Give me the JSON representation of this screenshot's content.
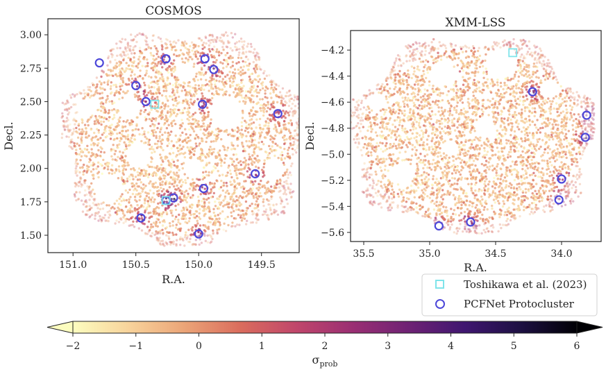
{
  "chart_data": [
    {
      "type": "scatter",
      "title": "COSMOS",
      "xlabel": "R.A.",
      "ylabel": "Decl.",
      "xlim": [
        151.2,
        149.2
      ],
      "ylim": [
        1.37,
        3.12
      ],
      "xticks": [
        {
          "v": 151.0,
          "label": "151.0"
        },
        {
          "v": 150.5,
          "label": "150.5"
        },
        {
          "v": 150.0,
          "label": "150.0"
        },
        {
          "v": 149.5,
          "label": "149.5"
        }
      ],
      "yticks": [
        {
          "v": 1.5,
          "label": "1.50"
        },
        {
          "v": 1.75,
          "label": "1.75"
        },
        {
          "v": 2.0,
          "label": "2.00"
        },
        {
          "v": 2.25,
          "label": "2.25"
        },
        {
          "v": 2.5,
          "label": "2.50"
        },
        {
          "v": 2.75,
          "label": "2.75"
        },
        {
          "v": 3.0,
          "label": "3.00"
        }
      ],
      "field": {
        "center": [
          150.12,
          2.22
        ],
        "radius": [
          0.97,
          0.8
        ],
        "holes": [
          [
            150.55,
            2.45,
            0.09
          ],
          [
            150.9,
            2.45,
            0.07
          ],
          [
            149.78,
            2.42,
            0.13
          ],
          [
            150.04,
            2.0,
            0.08
          ],
          [
            150.48,
            2.1,
            0.1
          ],
          [
            150.72,
            1.85,
            0.11
          ],
          [
            149.4,
            2.0,
            0.08
          ],
          [
            150.1,
            2.72,
            0.07
          ]
        ]
      },
      "series": [
        {
          "name": "PCFNet Protocluster",
          "marker": "circle",
          "points": [
            [
              150.79,
              2.79
            ],
            [
              150.5,
              2.62
            ],
            [
              150.42,
              2.5
            ],
            [
              150.26,
              2.82
            ],
            [
              149.95,
              2.82
            ],
            [
              149.88,
              2.74
            ],
            [
              149.97,
              2.48
            ],
            [
              149.37,
              2.41
            ],
            [
              149.55,
              1.96
            ],
            [
              150.26,
              1.76
            ],
            [
              150.2,
              1.78
            ],
            [
              149.96,
              1.85
            ],
            [
              150.46,
              1.63
            ],
            [
              150.0,
              1.51
            ]
          ]
        },
        {
          "name": "Toshikawa et al. (2023)",
          "marker": "square",
          "points": [
            [
              150.26,
              1.76
            ],
            [
              150.35,
              2.48
            ]
          ]
        }
      ]
    },
    {
      "type": "scatter",
      "title": "XMM-LSS",
      "xlabel": "R.A.",
      "ylabel": "Decl.",
      "xlim": [
        35.6,
        33.7
      ],
      "ylim": [
        -5.67,
        -4.05
      ],
      "xticks": [
        {
          "v": 35.5,
          "label": "35.5"
        },
        {
          "v": 35.0,
          "label": "35.0"
        },
        {
          "v": 34.5,
          "label": "34.5"
        },
        {
          "v": 34.0,
          "label": "34.0"
        }
      ],
      "yticks": [
        {
          "v": -5.6,
          "label": "−5.6"
        },
        {
          "v": -5.4,
          "label": "−5.4"
        },
        {
          "v": -5.2,
          "label": "−5.2"
        },
        {
          "v": -5.0,
          "label": "−5.0"
        },
        {
          "v": -4.8,
          "label": "−4.8"
        },
        {
          "v": -4.6,
          "label": "−4.6"
        },
        {
          "v": -4.4,
          "label": "−4.4"
        },
        {
          "v": -4.2,
          "label": "−4.2"
        }
      ],
      "field": {
        "center": [
          34.68,
          -4.86
        ],
        "radius": [
          0.93,
          0.75
        ],
        "holes": [
          [
            34.45,
            -4.3,
            0.12
          ],
          [
            34.9,
            -4.38,
            0.1
          ],
          [
            34.1,
            -4.5,
            0.07
          ],
          [
            34.58,
            -4.8,
            0.08
          ],
          [
            35.2,
            -5.15,
            0.09
          ],
          [
            34.85,
            -4.95,
            0.06
          ],
          [
            35.4,
            -4.6,
            0.07
          ]
        ]
      },
      "series": [
        {
          "name": "PCFNet Protocluster",
          "marker": "circle",
          "points": [
            [
              34.22,
              -4.52
            ],
            [
              33.81,
              -4.7
            ],
            [
              33.82,
              -4.87
            ],
            [
              34.0,
              -5.19
            ],
            [
              34.02,
              -5.35
            ],
            [
              34.93,
              -5.55
            ],
            [
              34.69,
              -5.52
            ]
          ]
        },
        {
          "name": "Toshikawa et al. (2023)",
          "marker": "square",
          "points": [
            [
              34.37,
              -4.22
            ]
          ]
        }
      ]
    },
    {
      "type": "heatmap",
      "colorbar_label": "σ",
      "colorbar_label_sub": "prob",
      "range": [
        -2,
        6
      ],
      "extend": "both",
      "colormap": "magma_r",
      "ticks": [
        {
          "v": -2,
          "label": "−2"
        },
        {
          "v": -1,
          "label": "−1"
        },
        {
          "v": 0,
          "label": "0"
        },
        {
          "v": 1,
          "label": "1"
        },
        {
          "v": 2,
          "label": "2"
        },
        {
          "v": 3,
          "label": "3"
        },
        {
          "v": 4,
          "label": "4"
        },
        {
          "v": 5,
          "label": "5"
        },
        {
          "v": 6,
          "label": "6"
        }
      ]
    }
  ],
  "legend": {
    "location": "bottom-right",
    "entries": [
      {
        "label": "Toshikawa et al. (2023)",
        "marker": "square",
        "color": "#7fe4ea"
      },
      {
        "label": "PCFNet Protocluster",
        "marker": "circle",
        "color": "#4c47d9"
      }
    ]
  },
  "colors": {
    "circle": "#4c47d9",
    "square": "#7fe4ea",
    "cmap_stops": [
      "#fcfdbf",
      "#f8d39b",
      "#eba477",
      "#da6c5d",
      "#c0466b",
      "#9a2f73",
      "#6e2274",
      "#3f1670",
      "#1d1042",
      "#000004"
    ]
  }
}
